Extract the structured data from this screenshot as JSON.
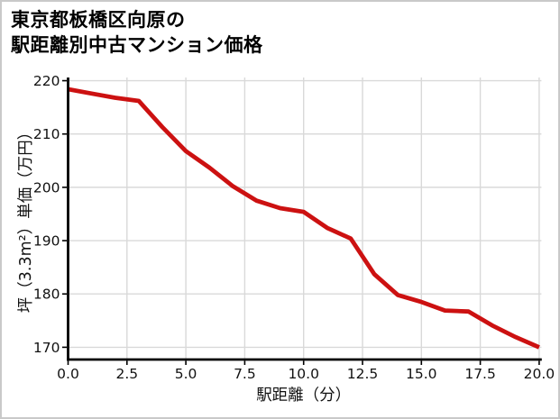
{
  "title": {
    "line1": "東京都板橋区向原の",
    "line2": "駅距離別中古マンション価格"
  },
  "chart_data": {
    "type": "line",
    "title": "東京都板橋区向原の駅距離別中古マンション価格",
    "xlabel": "駅距離（分）",
    "ylabel": "坪（3.3m²）単価（万円）",
    "x": [
      0,
      1,
      2,
      3,
      4,
      5,
      6,
      7,
      8,
      9,
      10,
      11,
      12,
      13,
      14,
      15,
      16,
      17,
      18,
      19,
      20
    ],
    "series": [
      {
        "name": "坪単価（万円）",
        "values": [
          218.4,
          217.6,
          216.8,
          216.2,
          211.3,
          206.8,
          203.7,
          200.2,
          197.5,
          196.1,
          195.4,
          192.4,
          190.4,
          183.7,
          179.8,
          178.5,
          176.9,
          176.7,
          174.1,
          171.9,
          170.0
        ]
      }
    ],
    "xlim": [
      0,
      20
    ],
    "ylim": [
      167.7,
      220.6
    ],
    "xticks": [
      0.0,
      2.5,
      5.0,
      7.5,
      10.0,
      12.5,
      15.0,
      17.5,
      20.0
    ],
    "xtick_labels": [
      "0.0",
      "2.5",
      "5.0",
      "7.5",
      "10.0",
      "12.5",
      "15.0",
      "17.5",
      "20.0"
    ],
    "yticks": [
      170,
      180,
      190,
      200,
      210,
      220
    ],
    "ytick_labels": [
      "170",
      "180",
      "190",
      "200",
      "210",
      "220"
    ],
    "grid": true,
    "legend": "none",
    "line_color": "#cc1111",
    "grid_color": "#d9d9d9",
    "axis_color": "#000000",
    "text_color": "#111111",
    "background_color": "#ffffff",
    "border_color": "#c9c9c9"
  }
}
